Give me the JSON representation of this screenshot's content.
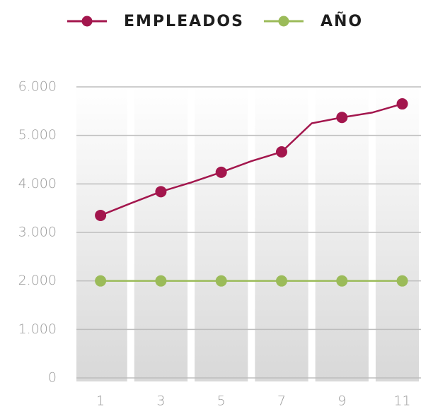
{
  "chart_data": {
    "type": "line",
    "x": [
      1,
      2,
      3,
      4,
      5,
      6,
      7,
      8,
      9,
      10,
      11
    ],
    "series": [
      {
        "name": "EMPLEADOS",
        "color": "#a3164d",
        "values": [
          3350,
          3600,
          3840,
          4030,
          4240,
          4470,
          4660,
          5250,
          5370,
          5470,
          5650
        ]
      },
      {
        "name": "AÑO",
        "color": "#9bbb59",
        "values": [
          2000,
          2000,
          2000,
          2000,
          2000,
          2000,
          2000,
          2000,
          2000,
          2000,
          2000
        ]
      }
    ],
    "xlim": [
      0.2,
      11.55
    ],
    "xticks": [
      1,
      3,
      5,
      7,
      9,
      11
    ],
    "ylim": [
      0,
      6000
    ],
    "yticks": [
      0,
      {
        "value": 1000,
        "label": "1.000"
      },
      {
        "value": 2000,
        "label": "2.000"
      },
      {
        "value": 3000,
        "label": "3.000"
      },
      {
        "value": 4000,
        "label": "4.000"
      },
      {
        "value": 5000,
        "label": "5.000"
      },
      {
        "value": 6000,
        "label": "6.000"
      }
    ],
    "grid": true,
    "legend": "top"
  }
}
